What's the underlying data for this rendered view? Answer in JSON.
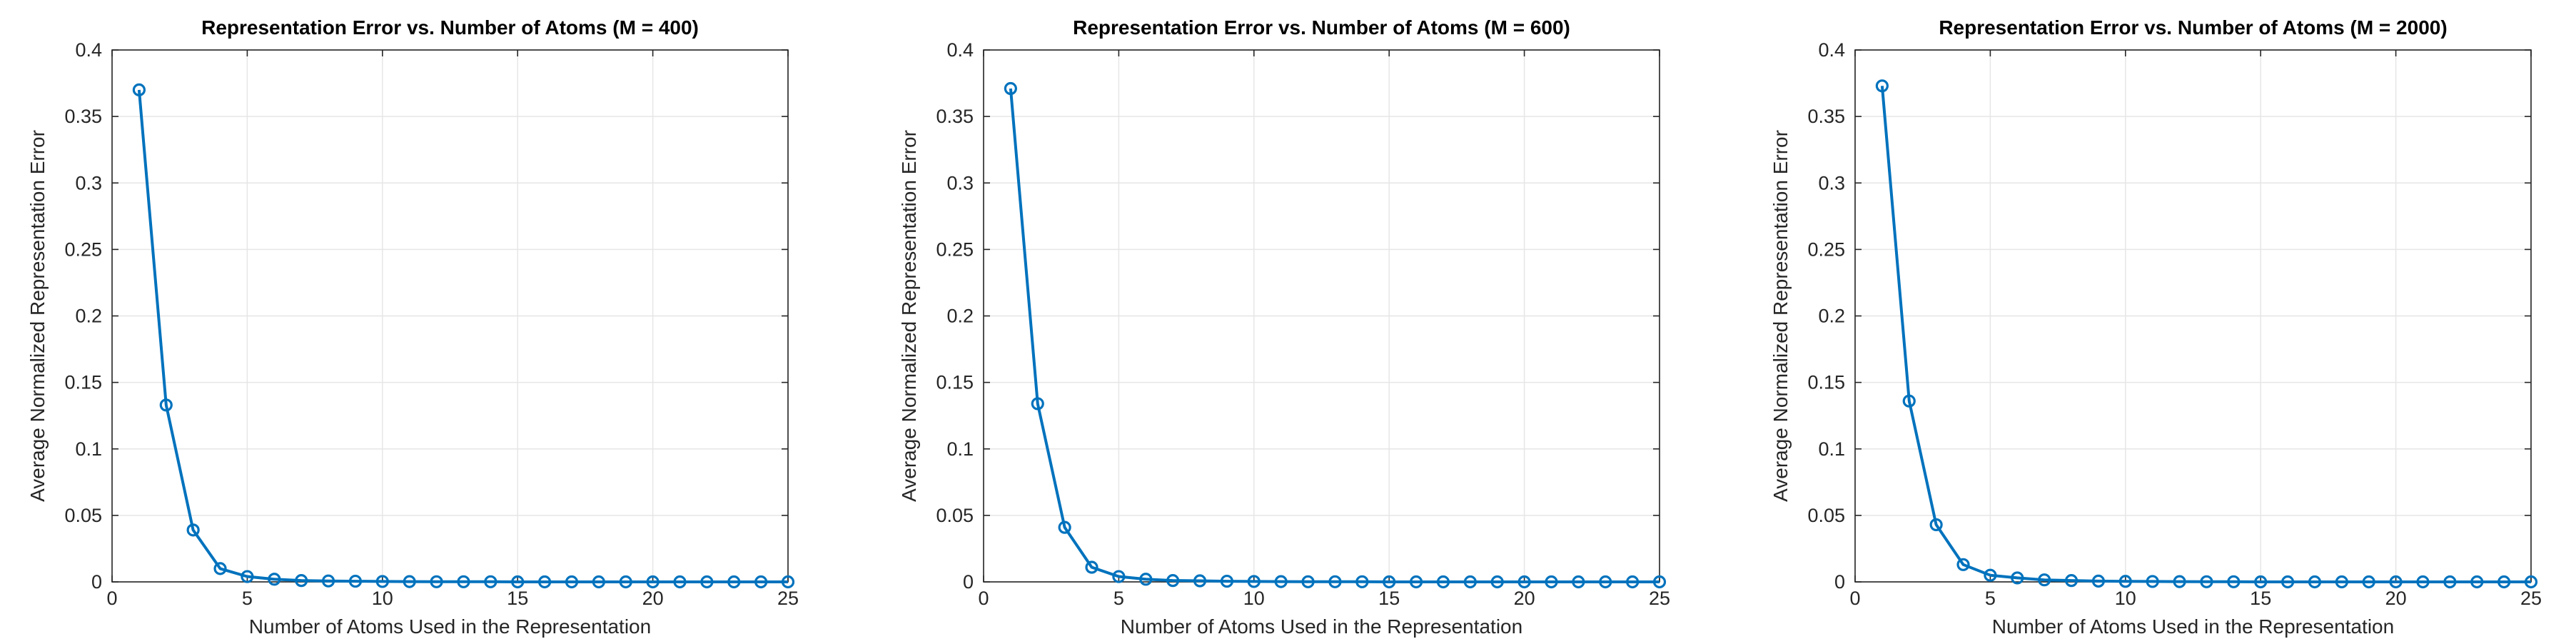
{
  "chart_data": [
    {
      "type": "line",
      "title": "Representation Error vs. Number of Atoms (M = 400)",
      "xlabel": "Number of Atoms Used in the Representation",
      "ylabel": "Average Normalized Representation Error",
      "xlim": [
        0,
        25
      ],
      "ylim": [
        0,
        0.4
      ],
      "xticks": [
        0,
        5,
        10,
        15,
        20,
        25
      ],
      "yticks": [
        0,
        0.05,
        0.1,
        0.15,
        0.2,
        0.25,
        0.3,
        0.35,
        0.4
      ],
      "grid": true,
      "series": [
        {
          "color": "#0072BD",
          "marker": "circle",
          "x": [
            1,
            2,
            3,
            4,
            5,
            6,
            7,
            8,
            9,
            10,
            11,
            12,
            13,
            14,
            15,
            16,
            17,
            18,
            19,
            20,
            21,
            22,
            23,
            24,
            25
          ],
          "y": [
            0.37,
            0.133,
            0.039,
            0.01,
            0.004,
            0.002,
            0.001,
            0.0007,
            0.0005,
            0.0003,
            0.0002,
            0.0001,
            0.0001,
            0.0001,
            0,
            0,
            0,
            0,
            0,
            0,
            0,
            0,
            0,
            0,
            0
          ]
        }
      ]
    },
    {
      "type": "line",
      "title": "Representation Error vs. Number of Atoms (M = 600)",
      "xlabel": "Number of Atoms Used in the Representation",
      "ylabel": "Average Normalized Representation Error",
      "xlim": [
        0,
        25
      ],
      "ylim": [
        0,
        0.4
      ],
      "xticks": [
        0,
        5,
        10,
        15,
        20,
        25
      ],
      "yticks": [
        0,
        0.05,
        0.1,
        0.15,
        0.2,
        0.25,
        0.3,
        0.35,
        0.4
      ],
      "grid": true,
      "series": [
        {
          "color": "#0072BD",
          "marker": "circle",
          "x": [
            1,
            2,
            3,
            4,
            5,
            6,
            7,
            8,
            9,
            10,
            11,
            12,
            13,
            14,
            15,
            16,
            17,
            18,
            19,
            20,
            21,
            22,
            23,
            24,
            25
          ],
          "y": [
            0.371,
            0.134,
            0.041,
            0.011,
            0.004,
            0.002,
            0.001,
            0.0008,
            0.0005,
            0.0003,
            0.0002,
            0.0001,
            0.0001,
            0.0001,
            0,
            0,
            0,
            0,
            0,
            0,
            0,
            0,
            0,
            0,
            0
          ]
        }
      ]
    },
    {
      "type": "line",
      "title": "Representation Error vs. Number of Atoms (M = 2000)",
      "xlabel": "Number of Atoms Used in the Representation",
      "ylabel": "Average Normalized Representation Error",
      "xlim": [
        0,
        25
      ],
      "ylim": [
        0,
        0.4
      ],
      "xticks": [
        0,
        5,
        10,
        15,
        20,
        25
      ],
      "yticks": [
        0,
        0.05,
        0.1,
        0.15,
        0.2,
        0.25,
        0.3,
        0.35,
        0.4
      ],
      "grid": true,
      "series": [
        {
          "color": "#0072BD",
          "marker": "circle",
          "x": [
            1,
            2,
            3,
            4,
            5,
            6,
            7,
            8,
            9,
            10,
            11,
            12,
            13,
            14,
            15,
            16,
            17,
            18,
            19,
            20,
            21,
            22,
            23,
            24,
            25
          ],
          "y": [
            0.373,
            0.136,
            0.043,
            0.013,
            0.005,
            0.003,
            0.0015,
            0.001,
            0.0006,
            0.0004,
            0.0003,
            0.0002,
            0.0001,
            0.0001,
            0,
            0,
            0,
            0,
            0,
            0,
            0,
            0,
            0,
            0,
            0
          ]
        }
      ]
    }
  ]
}
